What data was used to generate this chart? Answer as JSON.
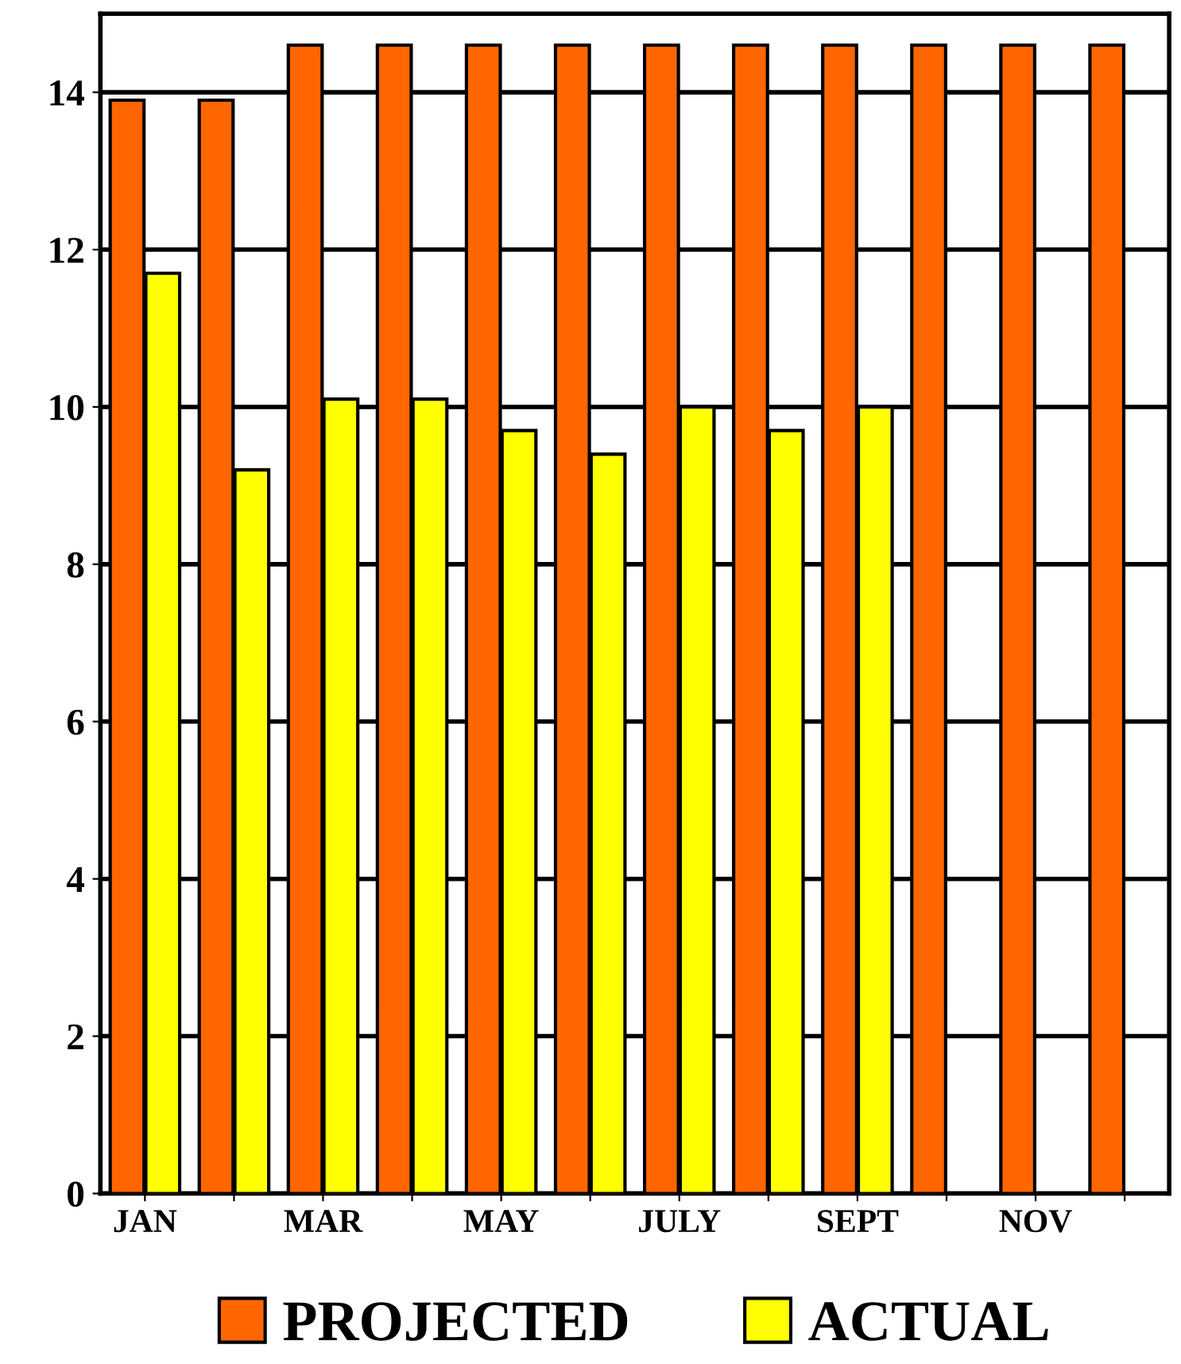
{
  "chart_data": {
    "type": "bar",
    "categories": [
      "JAN",
      null,
      "MAR",
      null,
      "MAY",
      null,
      "JULY",
      null,
      "SEPT",
      null,
      "NOV",
      null
    ],
    "series": [
      {
        "name": "PROJECTED",
        "color": "#ff6600",
        "values": [
          13.9,
          13.9,
          14.6,
          14.6,
          14.6,
          14.6,
          14.6,
          14.6,
          14.6,
          14.6,
          14.6,
          14.6
        ]
      },
      {
        "name": "ACTUAL",
        "color": "#ffff00",
        "values": [
          11.7,
          9.2,
          10.1,
          10.1,
          9.7,
          9.4,
          10.0,
          9.7,
          10.0,
          null,
          null,
          null
        ]
      }
    ],
    "ylim": [
      0,
      15
    ],
    "yticks": [
      0,
      2,
      4,
      6,
      8,
      10,
      12,
      14
    ],
    "grid": "y",
    "legend": "bottom"
  }
}
